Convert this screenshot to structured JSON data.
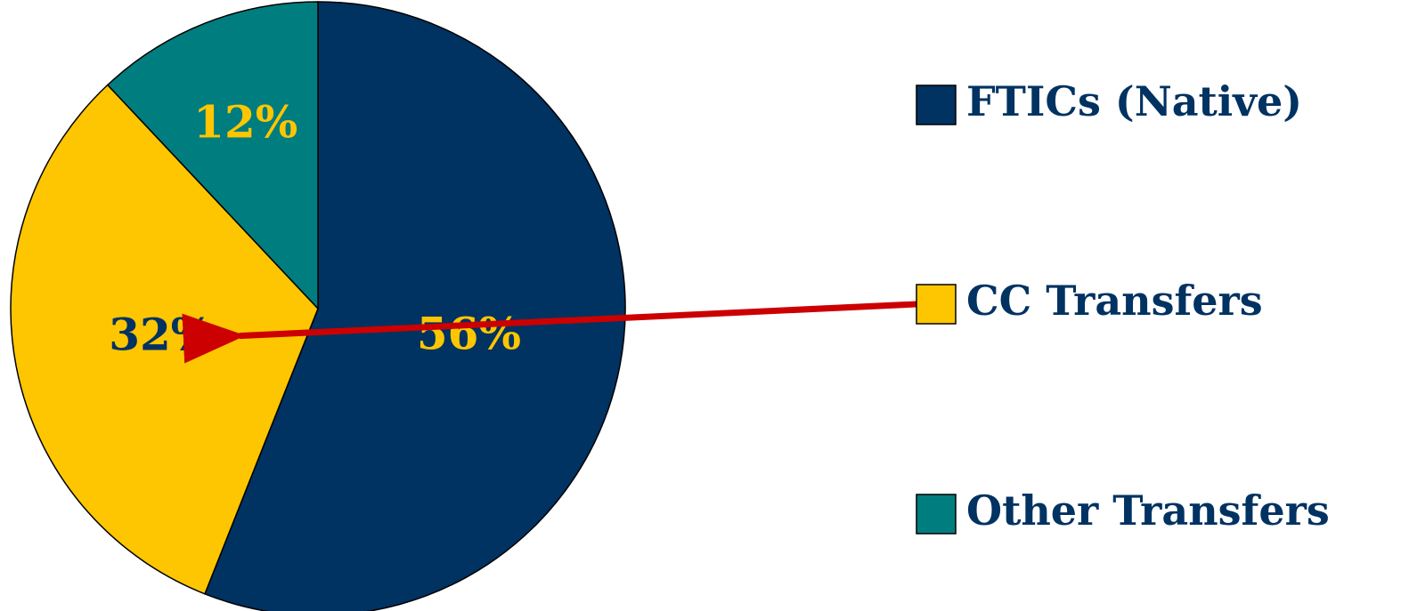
{
  "chart_data": {
    "type": "pie",
    "title": "",
    "slices": [
      {
        "label": "FTICs (Native)",
        "value": 56,
        "display": "56%",
        "color": "#003262",
        "label_color": "#FDC600"
      },
      {
        "label": "CC Transfers",
        "value": 32,
        "display": "32%",
        "color": "#FDC600",
        "label_color": "#003262"
      },
      {
        "label": "Other Transfers",
        "value": 12,
        "display": "12%",
        "color": "#007D7F",
        "label_color": "#FDC600"
      }
    ],
    "legend_position": "right",
    "legend_text_color": "#003262",
    "annotation": {
      "type": "arrow",
      "from": "CC Transfers",
      "to_label": "32%",
      "color": "#CC0000"
    }
  }
}
